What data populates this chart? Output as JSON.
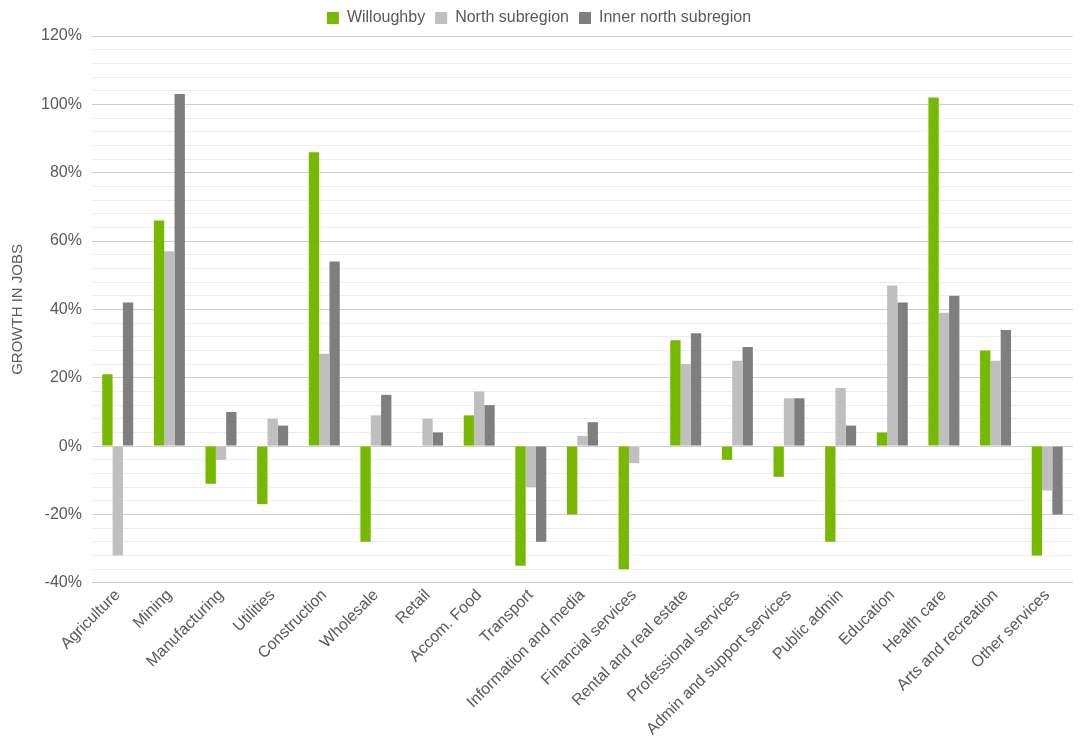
{
  "chart_data": {
    "type": "bar",
    "ylabel": "GROWTH IN JOBS",
    "categories": [
      "Agriculture",
      "Mining",
      "Manufacturing",
      "Utilities",
      "Construction",
      "Wholesale",
      "Retail",
      "Accom. Food",
      "Transport",
      "Information and media",
      "Financial services",
      "Rental and real estate",
      "Professional services",
      "Admin and support services",
      "Public admin",
      "Education",
      "Health care",
      "Arts and recreation",
      "Other services"
    ],
    "series": [
      {
        "name": "Willoughby",
        "color": "#76b900",
        "values": [
          21,
          66,
          -11,
          -17,
          86,
          -28,
          0,
          9,
          -35,
          -20,
          -36,
          31,
          -4,
          -9,
          -28,
          4,
          102,
          28,
          -32
        ]
      },
      {
        "name": "North subregion",
        "color": "#bfbfbf",
        "values": [
          -32,
          57,
          -4,
          8,
          27,
          9,
          8,
          16,
          -12,
          3,
          -5,
          24,
          25,
          14,
          17,
          47,
          39,
          25,
          -13
        ]
      },
      {
        "name": "Inner north subregion",
        "color": "#7f7f7f",
        "values": [
          42,
          103,
          10,
          6,
          54,
          15,
          4,
          12,
          -28,
          7,
          0,
          33,
          29,
          14,
          6,
          42,
          44,
          34,
          -20
        ]
      }
    ],
    "ylim": [
      -40,
      120
    ],
    "yticks": [
      {
        "value": -40,
        "label": "-40%"
      },
      {
        "value": -36,
        "label": null
      },
      {
        "value": -32,
        "label": null
      },
      {
        "value": -28,
        "label": null
      },
      {
        "value": -24,
        "label": null
      },
      {
        "value": -20,
        "label": "-20%"
      },
      {
        "value": -16,
        "label": null
      },
      {
        "value": -12,
        "label": null
      },
      {
        "value": -8,
        "label": null
      },
      {
        "value": -4,
        "label": null
      },
      {
        "value": 0,
        "label": "0%"
      },
      {
        "value": 4,
        "label": null
      },
      {
        "value": 8,
        "label": null
      },
      {
        "value": 12,
        "label": null
      },
      {
        "value": 16,
        "label": null
      },
      {
        "value": 20,
        "label": "20%"
      },
      {
        "value": 24,
        "label": null
      },
      {
        "value": 28,
        "label": null
      },
      {
        "value": 32,
        "label": null
      },
      {
        "value": 36,
        "label": null
      },
      {
        "value": 40,
        "label": "40%"
      },
      {
        "value": 44,
        "label": null
      },
      {
        "value": 48,
        "label": null
      },
      {
        "value": 52,
        "label": null
      },
      {
        "value": 56,
        "label": null
      },
      {
        "value": 60,
        "label": "60%"
      },
      {
        "value": 64,
        "label": null
      },
      {
        "value": 68,
        "label": null
      },
      {
        "value": 72,
        "label": null
      },
      {
        "value": 76,
        "label": null
      },
      {
        "value": 80,
        "label": "80%"
      },
      {
        "value": 84,
        "label": null
      },
      {
        "value": 88,
        "label": null
      },
      {
        "value": 92,
        "label": null
      },
      {
        "value": 96,
        "label": null
      },
      {
        "value": 100,
        "label": "100%"
      },
      {
        "value": 104,
        "label": null
      },
      {
        "value": 108,
        "label": null
      },
      {
        "value": 112,
        "label": null
      },
      {
        "value": 116,
        "label": null
      },
      {
        "value": 120,
        "label": "120%"
      }
    ],
    "grid": "y",
    "legend": "top"
  }
}
